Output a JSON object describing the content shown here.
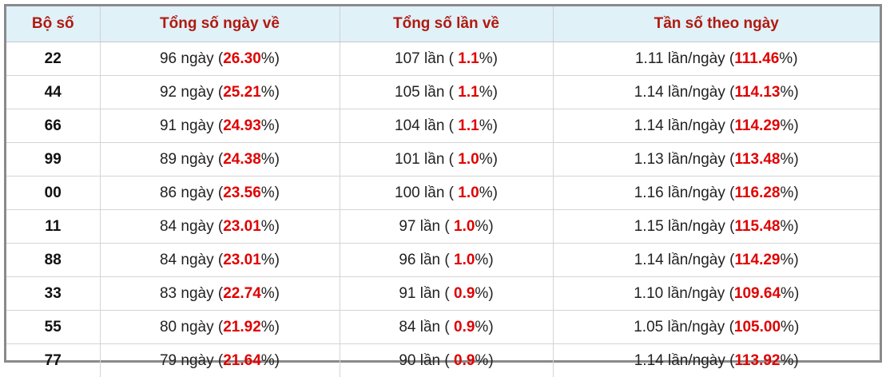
{
  "table": {
    "header": [
      "Bộ số",
      "Tổng số ngày về",
      "Tổng số lần về",
      "Tần số theo ngày"
    ],
    "rows": [
      [
        "22",
        [
          "96 ngày (",
          "26.30",
          "%)"
        ],
        [
          "107 lần ( ",
          "1.1",
          "%)"
        ],
        [
          "1.11 lần/ngày (",
          "111.46",
          "%)"
        ]
      ],
      [
        "44",
        [
          "92 ngày (",
          "25.21",
          "%)"
        ],
        [
          "105 lần ( ",
          "1.1",
          "%)"
        ],
        [
          "1.14 lần/ngày (",
          "114.13",
          "%)"
        ]
      ],
      [
        "66",
        [
          "91 ngày (",
          "24.93",
          "%)"
        ],
        [
          "104 lần ( ",
          "1.1",
          "%)"
        ],
        [
          "1.14 lần/ngày (",
          "114.29",
          "%)"
        ]
      ],
      [
        "99",
        [
          "89 ngày (",
          "24.38",
          "%)"
        ],
        [
          "101 lần ( ",
          "1.0",
          "%)"
        ],
        [
          "1.13 lần/ngày (",
          "113.48",
          "%)"
        ]
      ],
      [
        "00",
        [
          "86 ngày (",
          "23.56",
          "%)"
        ],
        [
          "100 lần ( ",
          "1.0",
          "%)"
        ],
        [
          "1.16 lần/ngày (",
          "116.28",
          "%)"
        ]
      ],
      [
        "11",
        [
          "84 ngày (",
          "23.01",
          "%)"
        ],
        [
          "97 lần ( ",
          "1.0",
          "%)"
        ],
        [
          "1.15 lần/ngày (",
          "115.48",
          "%)"
        ]
      ],
      [
        "88",
        [
          "84 ngày (",
          "23.01",
          "%)"
        ],
        [
          "96 lần ( ",
          "1.0",
          "%)"
        ],
        [
          "1.14 lần/ngày (",
          "114.29",
          "%)"
        ]
      ],
      [
        "33",
        [
          "83 ngày (",
          "22.74",
          "%)"
        ],
        [
          "91 lần ( ",
          "0.9",
          "%)"
        ],
        [
          "1.10 lần/ngày (",
          "109.64",
          "%)"
        ]
      ],
      [
        "55",
        [
          "80 ngày (",
          "21.92",
          "%)"
        ],
        [
          "84 lần ( ",
          "0.9",
          "%)"
        ],
        [
          "1.05 lần/ngày (",
          "105.00",
          "%)"
        ]
      ],
      [
        "77",
        [
          "79 ngày (",
          "21.64",
          "%)"
        ],
        [
          "90 lần ( ",
          "0.9",
          "%)"
        ],
        [
          "1.14 lần/ngày (",
          "113.92",
          "%)"
        ]
      ]
    ]
  }
}
